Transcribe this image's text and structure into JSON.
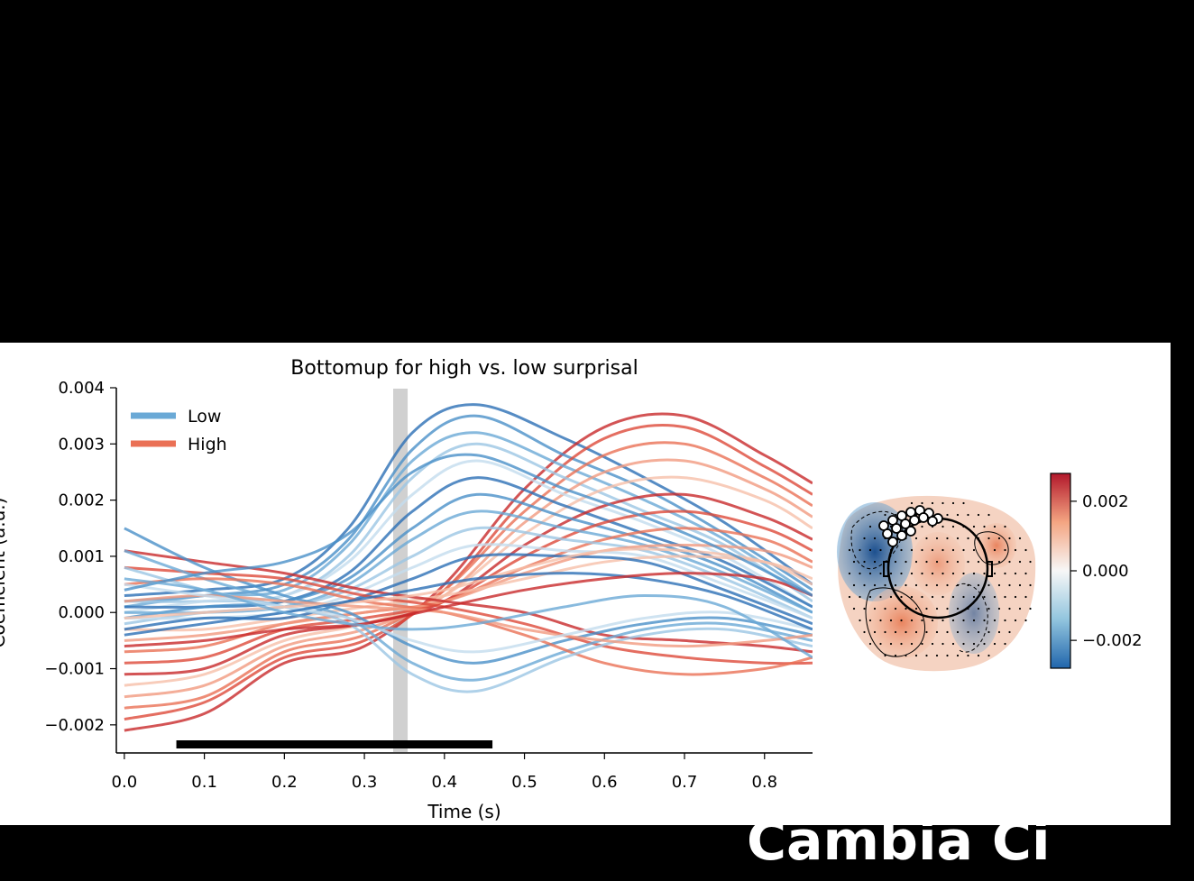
{
  "bottom_caption": "Cambia Ci",
  "chart_data": {
    "type": "line",
    "title": "Bottomup for high vs. low surprisal",
    "xlabel": "Time (s)",
    "ylabel": "Coefficient (a.u.)",
    "xlim": [
      -0.01,
      0.86
    ],
    "ylim": [
      -0.0025,
      0.004
    ],
    "x_ticks": [
      0.0,
      0.1,
      0.2,
      0.3,
      0.4,
      0.5,
      0.6,
      0.7,
      0.8
    ],
    "x_tick_labels": [
      "0.0",
      "0.1",
      "0.2",
      "0.3",
      "0.4",
      "0.5",
      "0.6",
      "0.7",
      "0.8"
    ],
    "y_ticks": [
      -0.002,
      -0.001,
      0.0,
      0.001,
      0.002,
      0.003,
      0.004
    ],
    "y_tick_labels": [
      "−0.002",
      "−0.001",
      "0.000",
      "0.001",
      "0.002",
      "0.003",
      "0.004"
    ],
    "legend": {
      "placement": "top-left",
      "entries": [
        {
          "label": "Low",
          "color": "#4a90c8"
        },
        {
          "label": "High",
          "color": "#e4553f"
        }
      ]
    },
    "highlight_time": 0.345,
    "significance_bar": [
      0.065,
      0.46
    ],
    "grid": false,
    "series_groups": [
      {
        "name": "Low",
        "colors": [
          "#2c6fb5",
          "#4a90c8",
          "#6aa9d6",
          "#9bc5e3",
          "#c3dcee"
        ],
        "lines": [
          {
            "x": [
              0,
              0.1,
              0.2,
              0.28,
              0.36,
              0.44,
              0.55,
              0.65,
              0.75,
              0.86
            ],
            "y": [
              0.0003,
              0.0004,
              0.0006,
              0.0015,
              0.0032,
              0.0037,
              0.0031,
              0.0024,
              0.0016,
              0.0005
            ]
          },
          {
            "x": [
              0,
              0.1,
              0.2,
              0.28,
              0.36,
              0.44,
              0.55,
              0.65,
              0.75,
              0.86
            ],
            "y": [
              0.0002,
              0.0003,
              0.0005,
              0.0013,
              0.0029,
              0.0035,
              0.0028,
              0.0022,
              0.0014,
              0.0004
            ]
          },
          {
            "x": [
              0,
              0.1,
              0.2,
              0.28,
              0.36,
              0.44,
              0.55,
              0.65,
              0.75,
              0.86
            ],
            "y": [
              0.0001,
              0.0003,
              0.0004,
              0.0012,
              0.0027,
              0.0032,
              0.0026,
              0.002,
              0.0013,
              0.0003
            ]
          },
          {
            "x": [
              0,
              0.1,
              0.2,
              0.28,
              0.36,
              0.44,
              0.55,
              0.65,
              0.75,
              0.86
            ],
            "y": [
              0.0002,
              0.0002,
              0.0003,
              0.001,
              0.0024,
              0.003,
              0.0024,
              0.0018,
              0.0012,
              0.0002
            ]
          },
          {
            "x": [
              0,
              0.1,
              0.2,
              0.28,
              0.36,
              0.44,
              0.55,
              0.65,
              0.75,
              0.86
            ],
            "y": [
              0.0,
              0.0002,
              0.0003,
              0.0009,
              0.0021,
              0.0027,
              0.0021,
              0.0016,
              0.001,
              0.0001
            ]
          },
          {
            "x": [
              0,
              0.1,
              0.2,
              0.28,
              0.36,
              0.44,
              0.55,
              0.65,
              0.75,
              0.86
            ],
            "y": [
              0.0001,
              0.0001,
              0.0002,
              0.0007,
              0.0018,
              0.0024,
              0.0019,
              0.0014,
              0.0009,
              0.0001
            ]
          },
          {
            "x": [
              0,
              0.1,
              0.2,
              0.28,
              0.36,
              0.44,
              0.55,
              0.65,
              0.75,
              0.86
            ],
            "y": [
              -0.0001,
              0.0001,
              0.0002,
              0.0006,
              0.0015,
              0.0021,
              0.0017,
              0.0013,
              0.0008,
              0.0
            ]
          },
          {
            "x": [
              0,
              0.1,
              0.2,
              0.28,
              0.36,
              0.44,
              0.55,
              0.65,
              0.75,
              0.86
            ],
            "y": [
              0.0,
              0.0,
              0.0001,
              0.0005,
              0.0013,
              0.0018,
              0.0015,
              0.0012,
              0.0007,
              0.0
            ]
          },
          {
            "x": [
              0,
              0.1,
              0.2,
              0.28,
              0.36,
              0.44,
              0.55,
              0.65,
              0.75,
              0.86
            ],
            "y": [
              -0.0002,
              0.0,
              0.0001,
              0.0004,
              0.001,
              0.0015,
              0.0013,
              0.0011,
              0.0006,
              -0.0001
            ]
          },
          {
            "x": [
              0,
              0.1,
              0.2,
              0.28,
              0.36,
              0.44,
              0.55,
              0.65,
              0.75,
              0.86
            ],
            "y": [
              -0.0001,
              -0.0001,
              0.0,
              0.0003,
              0.0008,
              0.0012,
              0.0011,
              0.001,
              0.0005,
              -0.0001
            ]
          },
          {
            "x": [
              0,
              0.1,
              0.2,
              0.28,
              0.36,
              0.44,
              0.55,
              0.65,
              0.75,
              0.86
            ],
            "y": [
              -0.0003,
              -0.0001,
              -0.0001,
              0.0002,
              0.0006,
              0.001,
              0.001,
              0.0009,
              0.0004,
              -0.0002
            ]
          },
          {
            "x": [
              0,
              0.1,
              0.2,
              0.28,
              0.36,
              0.44,
              0.55,
              0.65,
              0.75,
              0.86
            ],
            "y": [
              0.0015,
              0.0008,
              0.0003,
              0.0,
              -0.0006,
              -0.0009,
              -0.0005,
              -0.0002,
              -0.0001,
              -0.0004
            ]
          },
          {
            "x": [
              0,
              0.1,
              0.2,
              0.28,
              0.36,
              0.44,
              0.55,
              0.65,
              0.75,
              0.86
            ],
            "y": [
              0.0011,
              0.0006,
              0.0002,
              -0.0001,
              -0.0009,
              -0.0012,
              -0.0007,
              -0.0003,
              -0.0002,
              -0.0005
            ]
          },
          {
            "x": [
              0,
              0.1,
              0.2,
              0.28,
              0.36,
              0.44,
              0.55,
              0.65,
              0.75,
              0.86
            ],
            "y": [
              0.0008,
              0.0004,
              0.0001,
              -0.0002,
              -0.0011,
              -0.0014,
              -0.0008,
              -0.0004,
              -0.0003,
              -0.0006
            ]
          },
          {
            "x": [
              0,
              0.1,
              0.2,
              0.28,
              0.36,
              0.44,
              0.55,
              0.65,
              0.75,
              0.86
            ],
            "y": [
              0.0005,
              0.0003,
              0.0001,
              -0.0001,
              -0.0005,
              -0.0007,
              -0.0004,
              -0.0001,
              0.0,
              -0.0003
            ]
          },
          {
            "x": [
              0,
              0.1,
              0.2,
              0.28,
              0.36,
              0.44,
              0.55,
              0.65,
              0.75,
              0.86
            ],
            "y": [
              -0.0004,
              -0.0002,
              0.0,
              0.0002,
              0.0004,
              0.0006,
              0.0007,
              0.0006,
              0.0003,
              -0.0003
            ]
          },
          {
            "x": [
              0,
              0.1,
              0.2,
              0.28,
              0.36,
              0.44,
              0.55,
              0.65,
              0.75,
              0.86
            ],
            "y": [
              0.0004,
              0.0007,
              0.0009,
              0.0014,
              0.0025,
              0.0028,
              0.0022,
              0.0017,
              0.0011,
              0.0003
            ]
          },
          {
            "x": [
              0,
              0.1,
              0.2,
              0.28,
              0.36,
              0.44,
              0.55,
              0.65,
              0.75,
              0.86
            ],
            "y": [
              0.0006,
              0.0004,
              0.0,
              -0.0002,
              -0.0003,
              -0.0002,
              0.0001,
              0.0003,
              0.0001,
              -0.0008
            ]
          }
        ]
      },
      {
        "name": "High",
        "colors": [
          "#c8292b",
          "#dd4a3a",
          "#ea7055",
          "#f19a80",
          "#f6bfa9"
        ],
        "lines": [
          {
            "x": [
              0,
              0.1,
              0.2,
              0.3,
              0.4,
              0.5,
              0.6,
              0.7,
              0.8,
              0.86
            ],
            "y": [
              -0.0021,
              -0.0018,
              -0.0009,
              -0.0006,
              0.0005,
              0.0022,
              0.0033,
              0.0035,
              0.0028,
              0.0023
            ]
          },
          {
            "x": [
              0,
              0.1,
              0.2,
              0.3,
              0.4,
              0.5,
              0.6,
              0.7,
              0.8,
              0.86
            ],
            "y": [
              -0.0019,
              -0.0016,
              -0.0008,
              -0.0005,
              0.0004,
              0.002,
              0.0031,
              0.0033,
              0.0026,
              0.0021
            ]
          },
          {
            "x": [
              0,
              0.1,
              0.2,
              0.3,
              0.4,
              0.5,
              0.6,
              0.7,
              0.8,
              0.86
            ],
            "y": [
              -0.0017,
              -0.0015,
              -0.0007,
              -0.0004,
              0.0004,
              0.0018,
              0.0028,
              0.003,
              0.0024,
              0.0019
            ]
          },
          {
            "x": [
              0,
              0.1,
              0.2,
              0.3,
              0.4,
              0.5,
              0.6,
              0.7,
              0.8,
              0.86
            ],
            "y": [
              -0.0015,
              -0.0013,
              -0.0006,
              -0.0003,
              0.0003,
              0.0016,
              0.0025,
              0.0027,
              0.0022,
              0.0017
            ]
          },
          {
            "x": [
              0,
              0.1,
              0.2,
              0.3,
              0.4,
              0.5,
              0.6,
              0.7,
              0.8,
              0.86
            ],
            "y": [
              -0.0013,
              -0.0011,
              -0.0005,
              -0.0002,
              0.0003,
              0.0014,
              0.0022,
              0.0024,
              0.002,
              0.0015
            ]
          },
          {
            "x": [
              0,
              0.1,
              0.2,
              0.3,
              0.4,
              0.5,
              0.6,
              0.7,
              0.8,
              0.86
            ],
            "y": [
              -0.0011,
              -0.001,
              -0.0004,
              -0.0002,
              0.0002,
              0.0012,
              0.0019,
              0.0021,
              0.0017,
              0.0013
            ]
          },
          {
            "x": [
              0,
              0.1,
              0.2,
              0.3,
              0.4,
              0.5,
              0.6,
              0.7,
              0.8,
              0.86
            ],
            "y": [
              -0.0009,
              -0.0008,
              -0.0003,
              -0.0001,
              0.0002,
              0.001,
              0.0016,
              0.0018,
              0.0015,
              0.0011
            ]
          },
          {
            "x": [
              0,
              0.1,
              0.2,
              0.3,
              0.4,
              0.5,
              0.6,
              0.7,
              0.8,
              0.86
            ],
            "y": [
              -0.0007,
              -0.0006,
              -0.0002,
              0.0,
              0.0002,
              0.0008,
              0.0013,
              0.0015,
              0.0013,
              0.0009
            ]
          },
          {
            "x": [
              0,
              0.1,
              0.2,
              0.3,
              0.4,
              0.5,
              0.6,
              0.7,
              0.8,
              0.86
            ],
            "y": [
              -0.0005,
              -0.0004,
              -0.0002,
              0.0,
              0.0002,
              0.0007,
              0.0011,
              0.0012,
              0.0011,
              0.0008
            ]
          },
          {
            "x": [
              0,
              0.1,
              0.2,
              0.3,
              0.4,
              0.5,
              0.6,
              0.7,
              0.8,
              0.86
            ],
            "y": [
              -0.0003,
              -0.0003,
              -0.0001,
              0.0001,
              0.0003,
              0.0006,
              0.0009,
              0.001,
              0.0009,
              0.0006
            ]
          },
          {
            "x": [
              0,
              0.1,
              0.2,
              0.3,
              0.4,
              0.5,
              0.6,
              0.7,
              0.8,
              0.86
            ],
            "y": [
              0.0011,
              0.0009,
              0.0007,
              0.0004,
              0.0002,
              0.0,
              -0.0004,
              -0.0005,
              -0.0006,
              -0.0007
            ]
          },
          {
            "x": [
              0,
              0.1,
              0.2,
              0.3,
              0.4,
              0.5,
              0.6,
              0.7,
              0.8,
              0.86
            ],
            "y": [
              0.0008,
              0.0007,
              0.0006,
              0.0003,
              0.0001,
              -0.0002,
              -0.0006,
              -0.0008,
              -0.0009,
              -0.0009
            ]
          },
          {
            "x": [
              0,
              0.1,
              0.2,
              0.3,
              0.4,
              0.5,
              0.6,
              0.7,
              0.8,
              0.86
            ],
            "y": [
              0.0005,
              0.0006,
              0.0005,
              0.0002,
              0.0,
              -0.0004,
              -0.0009,
              -0.0011,
              -0.001,
              -0.0008
            ]
          },
          {
            "x": [
              0,
              0.1,
              0.2,
              0.3,
              0.4,
              0.5,
              0.6,
              0.7,
              0.8,
              0.86
            ],
            "y": [
              0.0002,
              0.0003,
              0.0002,
              0.0001,
              0.0,
              -0.0003,
              -0.0005,
              -0.0006,
              -0.0005,
              -0.0004
            ]
          },
          {
            "x": [
              0,
              0.1,
              0.2,
              0.3,
              0.4,
              0.5,
              0.6,
              0.7,
              0.8,
              0.86
            ],
            "y": [
              -0.0001,
              0.0,
              0.0001,
              0.0002,
              0.0004,
              0.0008,
              0.0011,
              0.0011,
              0.0009,
              0.0005
            ]
          },
          {
            "x": [
              0,
              0.1,
              0.2,
              0.3,
              0.4,
              0.5,
              0.6,
              0.7,
              0.8,
              0.86
            ],
            "y": [
              -0.0006,
              -0.0005,
              -0.0003,
              -0.0002,
              0.0001,
              0.0004,
              0.0006,
              0.0007,
              0.0006,
              0.0003
            ]
          }
        ]
      }
    ]
  },
  "topomap": {
    "colorbar": {
      "ticks": [
        0.002,
        0.0,
        -0.002
      ],
      "tick_labels": [
        "0.002",
        "0.000",
        "−0.002"
      ],
      "range": [
        -0.0028,
        0.0028
      ],
      "colors": [
        "#2166ac",
        "#92c5de",
        "#f7f7f7",
        "#f4a582",
        "#b2182b"
      ]
    }
  }
}
